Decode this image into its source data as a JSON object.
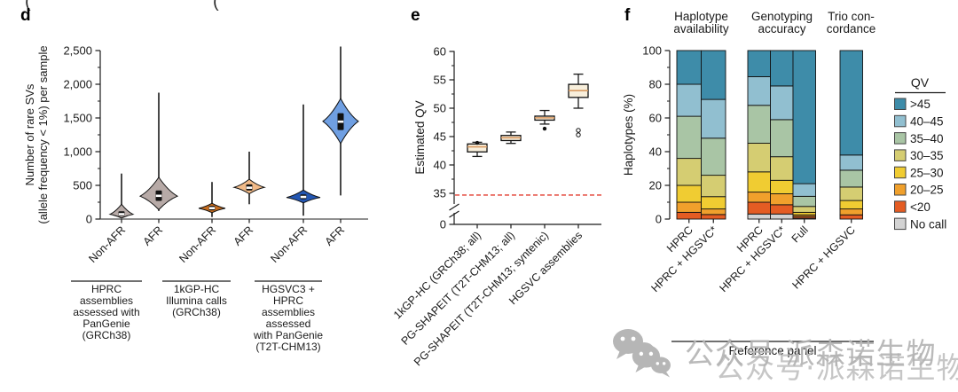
{
  "panel_labels": {
    "d": "d",
    "e": "e",
    "f": "f"
  },
  "top_fragments": [
    "(",
    "("
  ],
  "watermark": {
    "icon": "wechat-icon",
    "text": "公众号·派森诺生物"
  },
  "chart_data": [
    {
      "panel": "d",
      "type": "violin",
      "ylabel": "Number of rare SVs (allele frequency < 1%) per sample",
      "ylabel_lines": [
        "Number of rare SVs",
        "(allele frequency < 1%) per sample"
      ],
      "ylim": [
        0,
        2600
      ],
      "yticks": [
        {
          "v": 0,
          "label": "0"
        },
        {
          "v": 500,
          "label": "500"
        },
        {
          "v": 1000,
          "label": "1,000"
        },
        {
          "v": 1500,
          "label": "1,500"
        },
        {
          "v": 2000,
          "label": "2,000"
        },
        {
          "v": 2500,
          "label": "2,500"
        }
      ],
      "minor_tick_step": 250,
      "groups": [
        {
          "label": "HPRC assemblies assessed with PanGenie (GRCh38)",
          "label_lines": [
            "HPRC",
            "assemblies",
            "assessed with",
            "PanGenie",
            "(GRCh38)"
          ]
        },
        {
          "label": "1kGP-HC Illumina calls (GRCh38)",
          "label_lines": [
            "1kGP-HC",
            "Illumina calls",
            "(GRCh38)"
          ]
        },
        {
          "label": "HGSVC3 + HPRC assemblies assessed with PanGenie (T2T-CHM13)",
          "label_lines": [
            "HGSVC3 +",
            "HPRC",
            "assemblies",
            "assessed",
            "with PanGenie",
            "(T2T-CHM13)"
          ]
        }
      ],
      "violins": [
        {
          "category": "Non-AFR",
          "group": 0,
          "fill": "#b7aaa7",
          "whisker": [
            15,
            675
          ],
          "body": [
            15,
            220
          ],
          "peak": 70,
          "box": [
            45,
            115
          ],
          "median": 72
        },
        {
          "category": "AFR",
          "group": 0,
          "fill": "#b7aaa7",
          "whisker": [
            120,
            1875
          ],
          "body": [
            140,
            620
          ],
          "peak": 340,
          "box": [
            270,
            425
          ],
          "median": 345
        },
        {
          "category": "Non-AFR",
          "group": 1,
          "fill": "#c66c1e",
          "whisker": [
            30,
            550
          ],
          "body": [
            95,
            235
          ],
          "peak": 160,
          "box": [
            130,
            195
          ],
          "median": 162
        },
        {
          "category": "AFR",
          "group": 1,
          "fill": "#f1ba88",
          "whisker": [
            220,
            1000
          ],
          "body": [
            375,
            590
          ],
          "peak": 470,
          "box": [
            425,
            515
          ],
          "median": 465
        },
        {
          "category": "Non-AFR",
          "group": 2,
          "fill": "#2356b2",
          "whisker": [
            50,
            1700
          ],
          "body": [
            240,
            430
          ],
          "peak": 320,
          "box": [
            295,
            365
          ],
          "median": 328
        },
        {
          "category": "AFR",
          "group": 2,
          "fill": "#6f9fe2",
          "whisker": [
            350,
            2560
          ],
          "body": [
            1120,
            1790
          ],
          "peak": 1450,
          "box": [
            1320,
            1570
          ],
          "median": 1445
        }
      ]
    },
    {
      "panel": "e",
      "type": "box",
      "ylabel": "Estimated QV",
      "yticks": [
        0,
        35,
        40,
        45,
        50,
        55,
        60
      ],
      "minor_ticks": [
        37.5,
        42.5,
        47.5,
        52.5,
        57.5
      ],
      "axis_break": true,
      "ref_line": {
        "value": 34.7,
        "color": "#e23b2e",
        "style": "dashed"
      },
      "box_fill": "#f8efdc",
      "median_color": "#d99a62",
      "boxes": [
        {
          "label": "1kGP-HC (GRCh38; all)",
          "lo": 41.5,
          "q1": 42.3,
          "med": 43.2,
          "q3": 43.7,
          "hi": 44.0,
          "dots": [
            43.9
          ],
          "circles": []
        },
        {
          "label": "PG-SHAPEIT (T2T-CHM13; all)",
          "lo": 43.8,
          "q1": 44.3,
          "med": 44.8,
          "q3": 45.2,
          "hi": 45.8,
          "dots": [],
          "circles": []
        },
        {
          "label": "PG-SHAPEIT (T2T-CHM13; syntenic)",
          "lo": 47.2,
          "q1": 47.9,
          "med": 48.3,
          "q3": 48.6,
          "hi": 49.6,
          "dots": [
            46.4
          ],
          "circles": []
        },
        {
          "label": "HGSVC assemblies",
          "lo": 50.0,
          "q1": 51.9,
          "med": 53.1,
          "q3": 54.2,
          "hi": 56.0,
          "dots": [],
          "circles": [
            46.1,
            45.3
          ]
        }
      ]
    },
    {
      "panel": "f",
      "type": "stacked_bar",
      "ylabel": "Haplotypes (%)",
      "xlabel": "Reference panel",
      "ylim": [
        0,
        100
      ],
      "yticks": [
        0,
        20,
        40,
        60,
        80,
        100
      ],
      "minor_ticks": [
        10,
        30,
        50,
        70,
        90
      ],
      "group_headers": [
        {
          "lines": [
            "Haplotype",
            "availability"
          ]
        },
        {
          "lines": [
            "Genotyping",
            "accuracy"
          ]
        },
        {
          "lines": [
            "Trio con-",
            "cordance"
          ]
        }
      ],
      "legend": {
        "title": "QV",
        "entries": [
          {
            "label": ">45",
            "color": "#3e8ca9"
          },
          {
            "label": "40–45",
            "color": "#91bfd0"
          },
          {
            "label": "35–40",
            "color": "#a9c5a5"
          },
          {
            "label": "30–35",
            "color": "#d5cd72"
          },
          {
            "label": "25–30",
            "color": "#f0cc32"
          },
          {
            "label": "20–25",
            "color": "#f0a02c"
          },
          {
            "label": "<20",
            "color": "#e45c23"
          },
          {
            "label": "No call",
            "color": "#d3d3d3"
          }
        ]
      },
      "stack_order": [
        "No call",
        "<20",
        "20–25",
        "25–30",
        "30–35",
        "35–40",
        "40–45",
        ">45"
      ],
      "bars": [
        {
          "label": "HPRC",
          "group": 0,
          "values": {
            "No call": 0,
            "<20": 4,
            "20–25": 6,
            "25–30": 10,
            "30–35": 16,
            "35–40": 25,
            "40–45": 19,
            ">45": 20
          }
        },
        {
          "label": "HPRC + HGSVC*",
          "group": 0,
          "values": {
            "No call": 0,
            "<20": 2.7,
            "20–25": 3.3,
            "25–30": 7.3,
            "30–35": 12.7,
            "35–40": 22,
            "40–45": 23,
            ">45": 29
          }
        },
        {
          "label": "HPRC",
          "group": 1,
          "values": {
            "No call": 3,
            "<20": 7,
            "20–25": 6,
            "25–30": 12,
            "30–35": 17,
            "35–40": 22.5,
            "40–45": 17,
            ">45": 15.5
          }
        },
        {
          "label": "HPRC + HGSVC*",
          "group": 1,
          "values": {
            "No call": 3,
            "<20": 5.5,
            "20–25": 6.5,
            "25–30": 8,
            "30–35": 14,
            "35–40": 22,
            "40–45": 20,
            ">45": 21
          }
        },
        {
          "label": "Full",
          "group": 1,
          "values": {
            "No call": 0.5,
            "<20": 1,
            "20–25": 1,
            "25–30": 1.5,
            "30–35": 3.5,
            "35–40": 6,
            "40–45": 7.5,
            ">45": 79
          }
        },
        {
          "label": "HPRC + HGSVC",
          "group": 2,
          "values": {
            "No call": 0,
            "<20": 2.5,
            "20–25": 3.5,
            "25–30": 5,
            "30–35": 8,
            "35–40": 10,
            "40–45": 9,
            ">45": 62
          }
        }
      ]
    }
  ]
}
